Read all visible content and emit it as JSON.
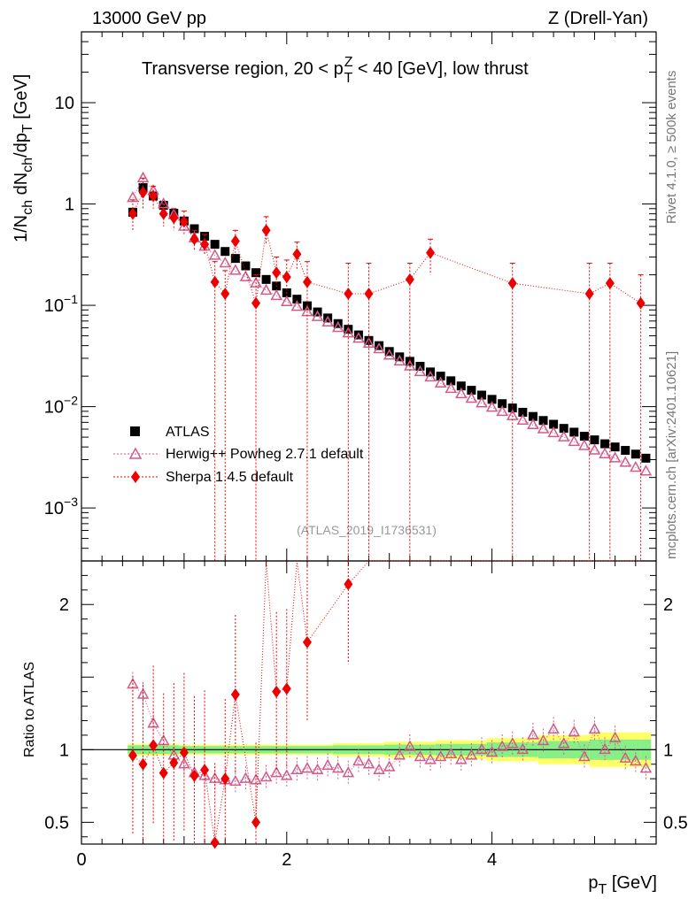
{
  "header": {
    "left_title": "13000 GeV pp",
    "right_title": "Z (Drell-Yan)"
  },
  "side_labels": {
    "rivet": "Rivet 4.1.0, ≥ 500k events",
    "mcplots": "mcplots.cern.ch [arXiv:2401.10621]"
  },
  "watermark": "(ATLAS_2019_I1736531)",
  "chart_data": {
    "type": "scatter",
    "title": "Transverse region, 20 < pTZ < 40 [GeV], low thrust",
    "title_parts": {
      "a": "Transverse region, 20 < p",
      "sup": "Z",
      "sub": "T",
      "b": " < 40 [GeV], low thrust"
    },
    "ylabel_parts": {
      "a": "1/N",
      "s1": "ch",
      "b": " dN",
      "s2": "ch",
      "c": "/dp",
      "s3": "T",
      "d": " [GeV]"
    },
    "xlabel_parts": {
      "a": "p",
      "s1": "T",
      "b": " [GeV]"
    },
    "ratio_ylabel": "Ratio to ATLAS",
    "xlim": [
      0,
      5.6
    ],
    "ylim_log": [
      0.0003,
      50
    ],
    "ratio_ylim": [
      0.35,
      2.3
    ],
    "x_ticks": [
      {
        "v": 0,
        "label": "0"
      },
      {
        "v": 2,
        "label": "2"
      },
      {
        "v": 4,
        "label": "4"
      }
    ],
    "y_ticks_main": [
      {
        "v": 10,
        "base": "10",
        "exp": ""
      },
      {
        "v": 1,
        "base": "1",
        "exp": ""
      },
      {
        "v": 0.1,
        "base": "10",
        "exp": "−1"
      },
      {
        "v": 0.01,
        "base": "10",
        "exp": "−2"
      },
      {
        "v": 0.001,
        "base": "10",
        "exp": "−3"
      }
    ],
    "y_ticks_ratio": [
      {
        "v": 2,
        "label": "2"
      },
      {
        "v": 1,
        "label": "1"
      },
      {
        "v": 0.5,
        "label": "0.5"
      }
    ],
    "legend": [
      {
        "name": "ATLAS",
        "marker": "square"
      },
      {
        "name": "Herwig++ Powheg 2.7.1 default",
        "marker": "triangle"
      },
      {
        "name": "Sherpa 1.4.5 default",
        "marker": "diamond"
      }
    ],
    "series": [
      {
        "name": "ATLAS",
        "color": "#000000",
        "x": [
          0.5,
          0.6,
          0.7,
          0.8,
          0.9,
          1.0,
          1.1,
          1.2,
          1.3,
          1.4,
          1.5,
          1.6,
          1.7,
          1.8,
          1.9,
          2.0,
          2.1,
          2.2,
          2.3,
          2.4,
          2.5,
          2.6,
          2.7,
          2.8,
          2.9,
          3.0,
          3.1,
          3.2,
          3.3,
          3.4,
          3.5,
          3.6,
          3.7,
          3.8,
          3.9,
          4.0,
          4.1,
          4.2,
          4.3,
          4.4,
          4.5,
          4.6,
          4.7,
          4.8,
          4.9,
          5.0,
          5.1,
          5.2,
          5.3,
          5.4,
          5.5
        ],
        "y": [
          0.83,
          1.45,
          1.2,
          0.97,
          0.81,
          0.68,
          0.57,
          0.48,
          0.4,
          0.34,
          0.29,
          0.245,
          0.21,
          0.18,
          0.155,
          0.133,
          0.115,
          0.099,
          0.086,
          0.075,
          0.066,
          0.058,
          0.051,
          0.045,
          0.04,
          0.035,
          0.031,
          0.028,
          0.025,
          0.022,
          0.02,
          0.018,
          0.016,
          0.0145,
          0.013,
          0.0118,
          0.0107,
          0.0097,
          0.0088,
          0.008,
          0.0073,
          0.0067,
          0.0061,
          0.0056,
          0.0051,
          0.0047,
          0.0043,
          0.004,
          0.0037,
          0.0034,
          0.0031
        ]
      },
      {
        "name": "Herwig++ Powheg 2.7.1 default",
        "color": "#d15a8a",
        "x": [
          0.5,
          0.6,
          0.7,
          0.8,
          0.9,
          1.0,
          1.1,
          1.2,
          1.3,
          1.4,
          1.5,
          1.6,
          1.7,
          1.8,
          1.9,
          2.0,
          2.1,
          2.2,
          2.3,
          2.4,
          2.5,
          2.6,
          2.7,
          2.8,
          2.9,
          3.0,
          3.1,
          3.2,
          3.3,
          3.4,
          3.5,
          3.6,
          3.7,
          3.8,
          3.9,
          4.0,
          4.1,
          4.2,
          4.3,
          4.4,
          4.5,
          4.6,
          4.7,
          4.8,
          4.9,
          5.0,
          5.1,
          5.2,
          5.3,
          5.4,
          5.5
        ],
        "y": [
          1.15,
          1.8,
          1.35,
          1.0,
          0.78,
          0.6,
          0.46,
          0.38,
          0.31,
          0.26,
          0.22,
          0.19,
          0.165,
          0.14,
          0.124,
          0.108,
          0.097,
          0.086,
          0.077,
          0.068,
          0.06,
          0.053,
          0.047,
          0.042,
          0.037,
          0.032,
          0.028,
          0.025,
          0.022,
          0.0195,
          0.017,
          0.015,
          0.0133,
          0.012,
          0.0108,
          0.0098,
          0.0089,
          0.0081,
          0.0073,
          0.0066,
          0.006,
          0.0055,
          0.005,
          0.0045,
          0.0041,
          0.0037,
          0.0034,
          0.0031,
          0.0028,
          0.0025,
          0.0023
        ],
        "ratio": [
          1.45,
          1.38,
          1.18,
          1.06,
          0.96,
          0.9,
          0.84,
          0.82,
          0.8,
          0.79,
          0.78,
          0.8,
          0.79,
          0.81,
          0.84,
          0.82,
          0.86,
          0.87,
          0.86,
          0.89,
          0.87,
          0.84,
          0.92,
          0.9,
          0.86,
          0.88,
          0.96,
          1.02,
          0.95,
          0.93,
          0.95,
          0.97,
          0.93,
          0.96,
          1.0,
          0.98,
          1.02,
          1.04,
          1.0,
          1.1,
          1.06,
          1.14,
          1.04,
          1.12,
          0.95,
          1.14,
          1.0,
          1.08,
          0.94,
          0.92,
          0.87
        ]
      },
      {
        "name": "Sherpa 1.4.5 default",
        "color": "#ee0000",
        "x": [
          0.5,
          0.6,
          0.7,
          0.8,
          0.9,
          1.0,
          1.1,
          1.2,
          1.3,
          1.4,
          1.5,
          1.7,
          1.8,
          1.9,
          2.0,
          2.1,
          2.2,
          2.6,
          2.8,
          3.2,
          3.4,
          4.2,
          4.95,
          5.15,
          5.45
        ],
        "y": [
          0.8,
          1.3,
          1.2,
          0.8,
          0.73,
          0.67,
          0.45,
          0.4,
          0.17,
          0.13,
          0.43,
          0.105,
          0.55,
          0.21,
          0.19,
          0.32,
          0.17,
          0.13,
          0.13,
          0.18,
          0.33,
          0.165,
          0.13,
          0.165,
          0.105
        ],
        "yerr_lo": [
          0.55,
          0.9,
          0.9,
          0.6,
          0.55,
          0.5,
          0.35,
          0.32,
          0.0003,
          0.0003,
          0.33,
          0.0003,
          0.4,
          0.15,
          0.13,
          0.22,
          0.0003,
          0.0003,
          0.0003,
          0.0003,
          0.2,
          0.0003,
          0.0003,
          0.0003,
          0.0003
        ],
        "yerr_hi": [
          1.1,
          1.8,
          1.5,
          1.0,
          0.9,
          0.85,
          0.55,
          0.5,
          0.27,
          0.22,
          0.55,
          0.2,
          0.75,
          0.3,
          0.28,
          0.42,
          0.27,
          0.26,
          0.26,
          0.26,
          0.45,
          0.26,
          0.26,
          0.26,
          0.2
        ],
        "ratio": [
          0.96,
          0.9,
          1.03,
          0.84,
          0.91,
          0.98,
          0.82,
          0.86,
          0.36,
          0.8,
          1.38,
          0.5,
          2.6,
          1.4,
          1.42,
          2.5,
          1.74,
          2.14,
          2.5,
          2.5,
          2.5,
          2.5,
          2.5,
          2.5,
          2.5
        ]
      }
    ],
    "ratio_band": {
      "x": [
        0.5,
        1.0,
        1.5,
        2.0,
        2.5,
        3.0,
        3.5,
        4.0,
        4.5,
        5.0,
        5.5
      ],
      "inner": [
        0.03,
        0.025,
        0.025,
        0.025,
        0.03,
        0.035,
        0.04,
        0.05,
        0.06,
        0.07,
        0.07
      ],
      "outer": [
        0.04,
        0.035,
        0.035,
        0.035,
        0.045,
        0.055,
        0.065,
        0.08,
        0.1,
        0.12,
        0.12
      ]
    },
    "grid": false
  }
}
